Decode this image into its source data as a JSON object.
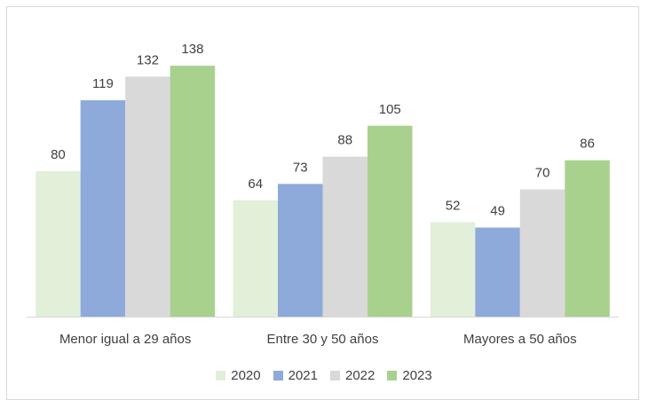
{
  "chart_data": {
    "type": "bar",
    "categories": [
      "Menor igual a 29 años",
      "Entre 30 y 50 años",
      "Mayores a 50 años"
    ],
    "series": [
      {
        "name": "2020",
        "values": [
          80,
          64,
          52
        ],
        "color": "#e2efd9"
      },
      {
        "name": "2021",
        "values": [
          119,
          73,
          49
        ],
        "color": "#8eaadb"
      },
      {
        "name": "2022",
        "values": [
          132,
          88,
          70
        ],
        "color": "#d9d9d9"
      },
      {
        "name": "2023",
        "values": [
          138,
          105,
          86
        ],
        "color": "#a9d18e"
      }
    ],
    "title": "",
    "xlabel": "",
    "ylabel": "",
    "ylim": [
      0,
      160
    ],
    "grid": false,
    "legend_position": "bottom",
    "data_labels": true
  }
}
